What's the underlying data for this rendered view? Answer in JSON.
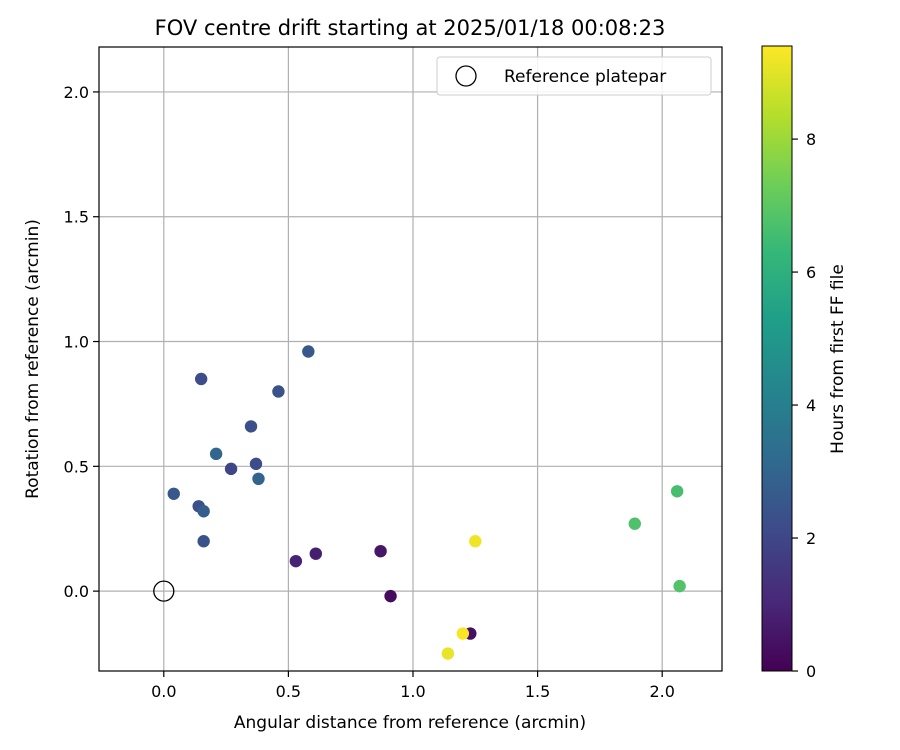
{
  "chart_data": {
    "type": "scatter",
    "title": "FOV centre drift starting at 2025/01/18 00:08:23",
    "xlabel": "Angular distance from reference (arcmin)",
    "ylabel": "Rotation from reference (arcmin)",
    "xlim": [
      -0.26,
      2.24
    ],
    "ylim": [
      -0.32,
      2.18
    ],
    "x_ticks": [
      0.0,
      0.5,
      1.0,
      1.5,
      2.0
    ],
    "x_tick_labels": [
      "0.0",
      "0.5",
      "1.0",
      "1.5",
      "2.0"
    ],
    "y_ticks": [
      0.0,
      0.5,
      1.0,
      1.5,
      2.0
    ],
    "y_tick_labels": [
      "0.0",
      "0.5",
      "1.0",
      "1.5",
      "2.0"
    ],
    "grid": true,
    "legend": {
      "placement": "top-right",
      "entries": [
        {
          "label": "Reference platepar",
          "marker": "open-circle",
          "color": "#000000"
        }
      ]
    },
    "reference_point": {
      "x": 0.0,
      "y": 0.0
    },
    "colorbar": {
      "label": "Hours from first FF file",
      "colormap": "viridis",
      "range": [
        0,
        9.4
      ],
      "ticks": [
        0,
        2,
        4,
        6,
        8
      ],
      "tick_labels": [
        "0",
        "2",
        "4",
        "6",
        "8"
      ]
    },
    "points": [
      {
        "x": 0.53,
        "y": 0.12,
        "hours": 0.9
      },
      {
        "x": 0.61,
        "y": 0.15,
        "hours": 0.8
      },
      {
        "x": 0.87,
        "y": 0.16,
        "hours": 0.6
      },
      {
        "x": 0.91,
        "y": -0.02,
        "hours": 0.3
      },
      {
        "x": 1.23,
        "y": -0.17,
        "hours": 0.4
      },
      {
        "x": 0.15,
        "y": 0.85,
        "hours": 2.2
      },
      {
        "x": 0.58,
        "y": 0.96,
        "hours": 2.6
      },
      {
        "x": 0.46,
        "y": 0.8,
        "hours": 2.4
      },
      {
        "x": 0.35,
        "y": 0.66,
        "hours": 2.3
      },
      {
        "x": 0.21,
        "y": 0.55,
        "hours": 3.1
      },
      {
        "x": 0.27,
        "y": 0.49,
        "hours": 2.0
      },
      {
        "x": 0.37,
        "y": 0.51,
        "hours": 2.2
      },
      {
        "x": 0.38,
        "y": 0.45,
        "hours": 3.0
      },
      {
        "x": 0.04,
        "y": 0.39,
        "hours": 2.6
      },
      {
        "x": 0.14,
        "y": 0.34,
        "hours": 2.3
      },
      {
        "x": 0.16,
        "y": 0.32,
        "hours": 2.8
      },
      {
        "x": 0.16,
        "y": 0.2,
        "hours": 2.4
      },
      {
        "x": 1.89,
        "y": 0.27,
        "hours": 6.7
      },
      {
        "x": 2.06,
        "y": 0.4,
        "hours": 6.6
      },
      {
        "x": 2.07,
        "y": 0.02,
        "hours": 6.8
      },
      {
        "x": 1.25,
        "y": 0.2,
        "hours": 9.2
      },
      {
        "x": 1.2,
        "y": -0.17,
        "hours": 9.3
      },
      {
        "x": 1.14,
        "y": -0.25,
        "hours": 9.1
      }
    ]
  }
}
